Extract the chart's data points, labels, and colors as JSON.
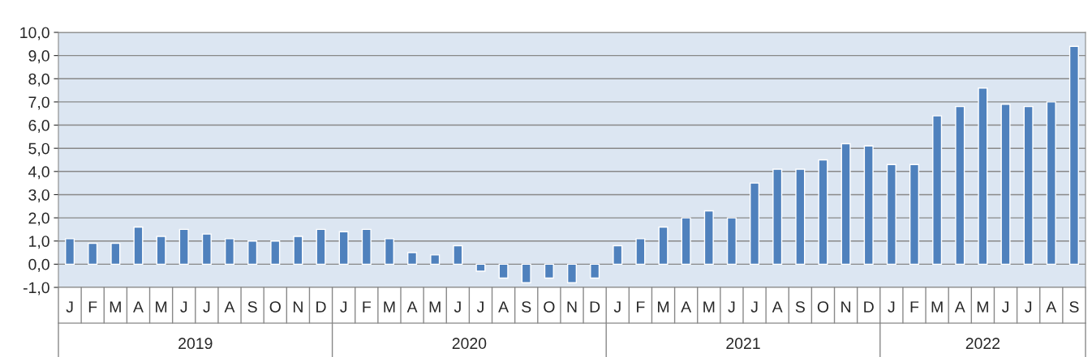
{
  "chart_data": {
    "type": "bar",
    "categories": [
      "J",
      "F",
      "M",
      "A",
      "M",
      "J",
      "J",
      "A",
      "S",
      "O",
      "N",
      "D",
      "J",
      "F",
      "M",
      "A",
      "M",
      "J",
      "J",
      "A",
      "S",
      "O",
      "N",
      "D",
      "J",
      "F",
      "M",
      "A",
      "M",
      "J",
      "J",
      "A",
      "S",
      "O",
      "N",
      "D",
      "J",
      "F",
      "M",
      "A",
      "M",
      "J",
      "J",
      "A",
      "S"
    ],
    "values": [
      1.1,
      0.9,
      0.9,
      1.6,
      1.2,
      1.5,
      1.3,
      1.1,
      1.0,
      1.0,
      1.2,
      1.5,
      1.4,
      1.5,
      1.1,
      0.5,
      0.4,
      0.8,
      -0.3,
      -0.6,
      -0.8,
      -0.6,
      -0.8,
      -0.6,
      0.8,
      1.1,
      1.6,
      2.0,
      2.3,
      2.0,
      3.5,
      4.1,
      4.1,
      4.5,
      5.2,
      5.1,
      4.3,
      4.3,
      6.4,
      6.8,
      7.6,
      6.9,
      6.8,
      7.0,
      9.4
    ],
    "color": "#4f81bd",
    "ylim": [
      -1,
      10
    ],
    "yticks": [
      {
        "value": -1,
        "label": "-1,0"
      },
      {
        "value": 0,
        "label": "0,0"
      },
      {
        "value": 1,
        "label": "1,0"
      },
      {
        "value": 2,
        "label": "2,0"
      },
      {
        "value": 3,
        "label": "3,0"
      },
      {
        "value": 4,
        "label": "4,0"
      },
      {
        "value": 5,
        "label": "5,0"
      },
      {
        "value": 6,
        "label": "6,0"
      },
      {
        "value": 7,
        "label": "7,0"
      },
      {
        "value": 8,
        "label": "8,0"
      },
      {
        "value": 9,
        "label": "9,0"
      },
      {
        "value": 10,
        "label": "10,0"
      }
    ],
    "grid": "y",
    "annotations": [
      "2019",
      "2020",
      "2021",
      "2022"
    ]
  }
}
